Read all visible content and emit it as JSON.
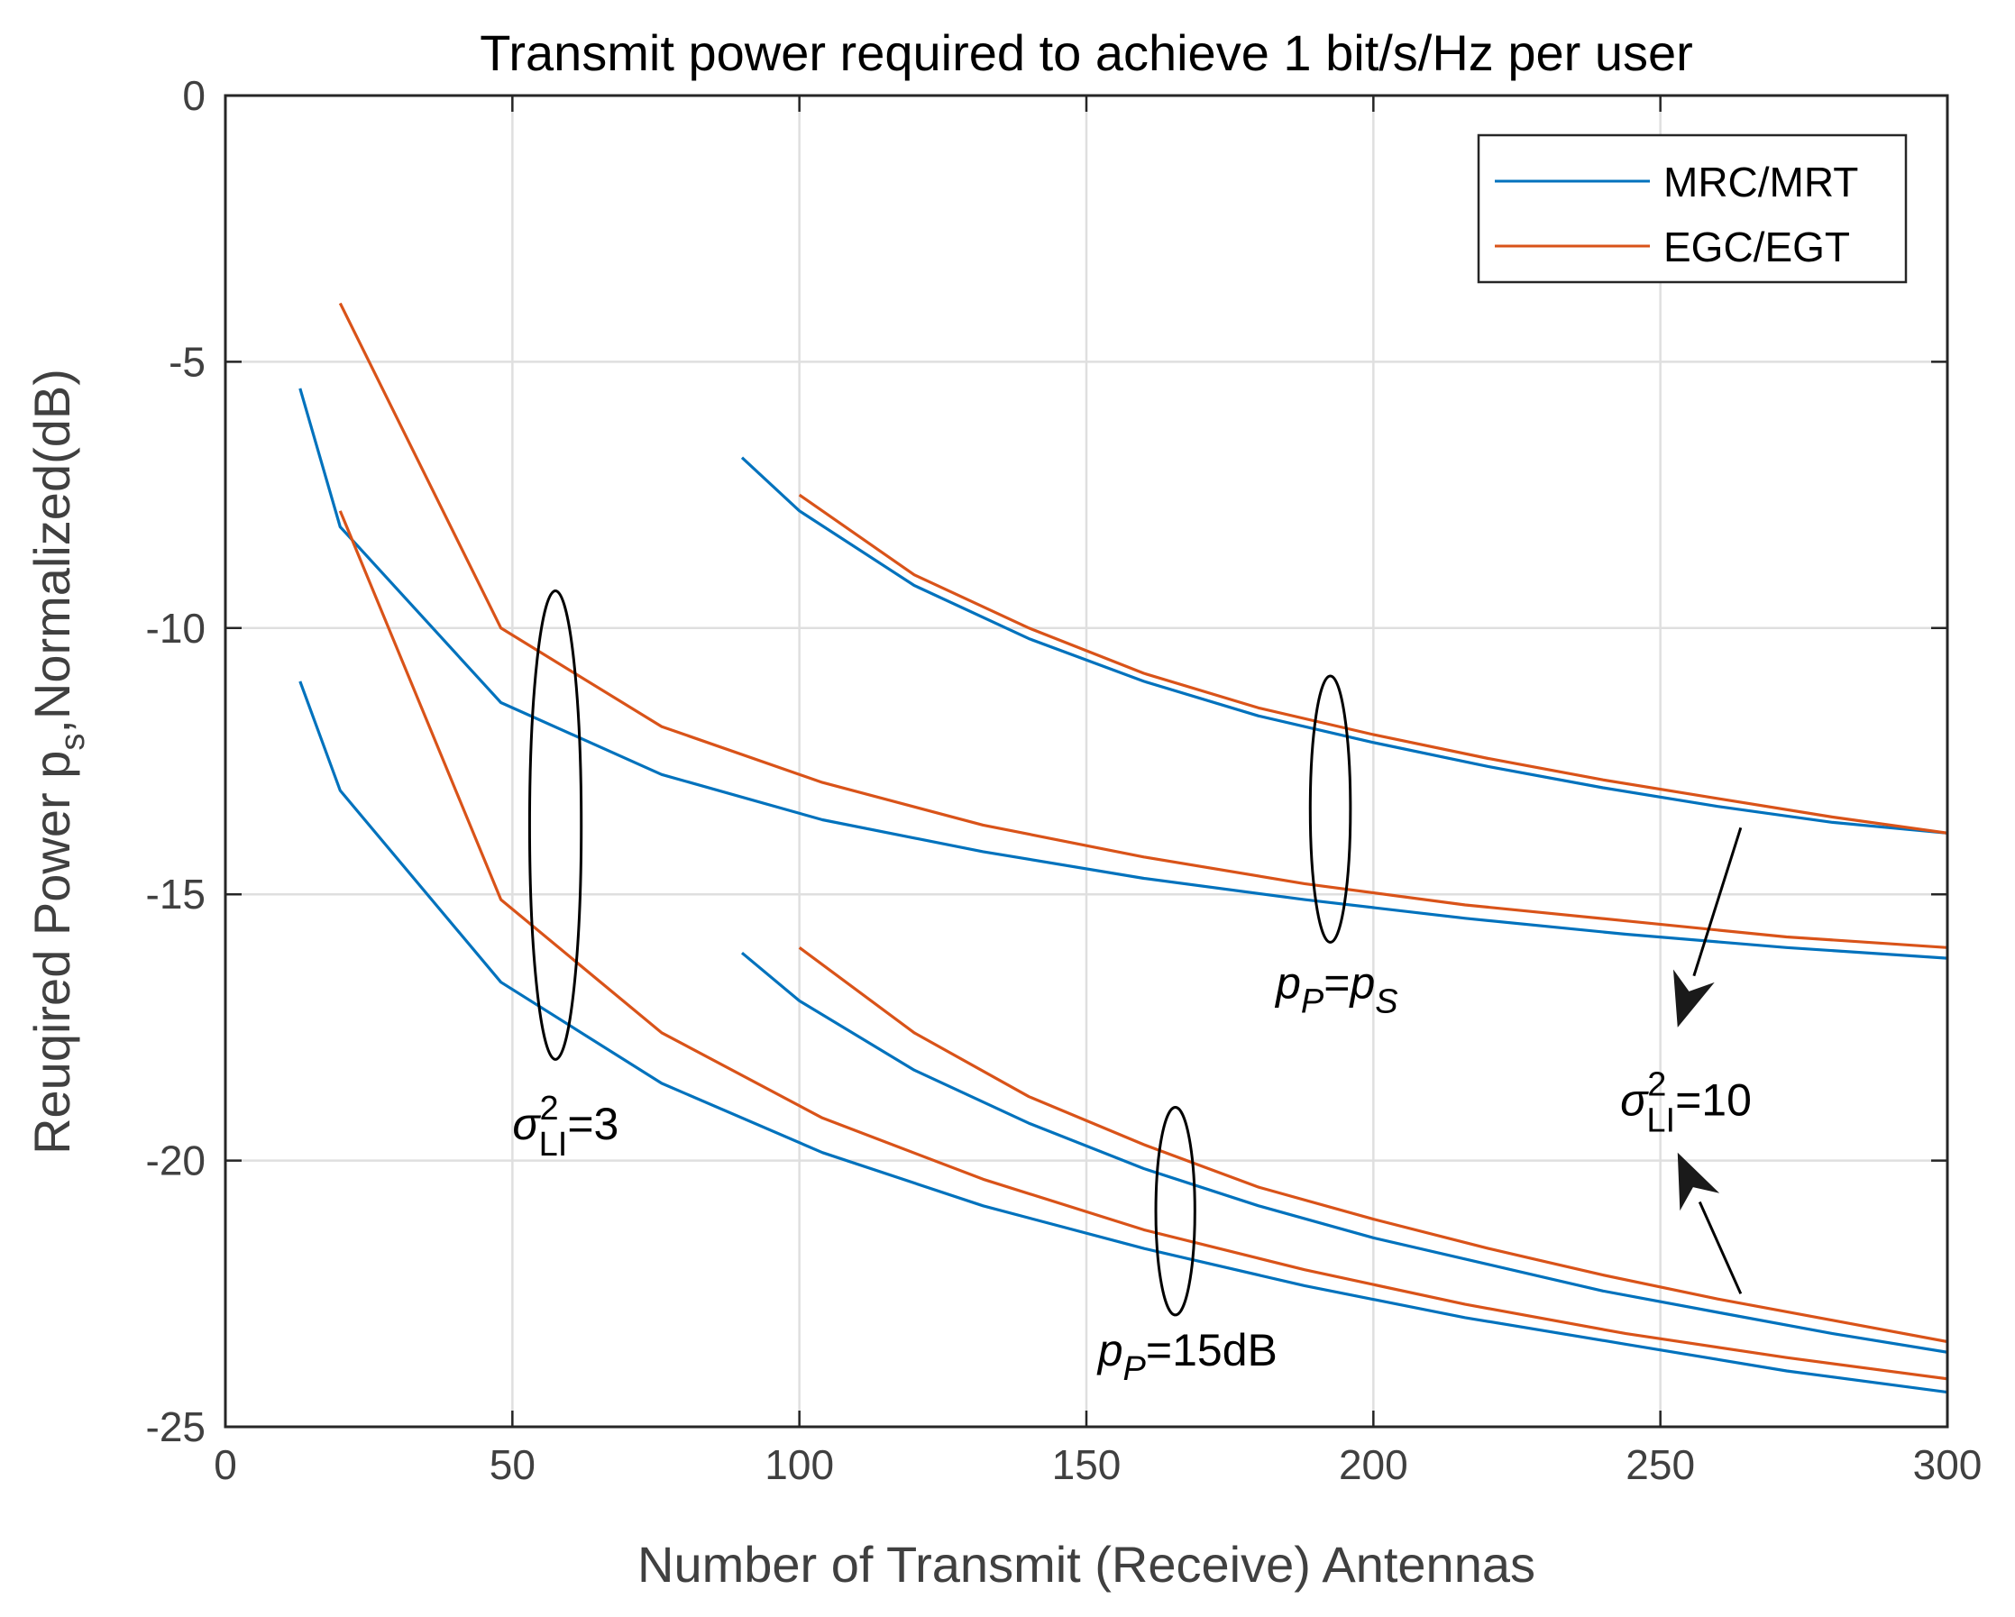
{
  "chart_data": {
    "type": "line",
    "title": "Transmit power required to achieve 1 bit/s/Hz per user",
    "xlabel": "Number of Transmit (Receive) Antennas",
    "ylabel": {
      "main": "Reuqired Power p",
      "sub": "s",
      "rest": ",Normalized(dB)"
    },
    "xlim": [
      0,
      300
    ],
    "ylim": [
      -25,
      0
    ],
    "xticks": [
      0,
      50,
      100,
      150,
      200,
      250,
      300
    ],
    "yticks": [
      0,
      -5,
      -10,
      -15,
      -20,
      -25
    ],
    "xtick_labels": [
      "0",
      "50",
      "100",
      "150",
      "200",
      "250",
      "300"
    ],
    "ytick_labels": [
      "0",
      "-5",
      "-10",
      "-15",
      "-20",
      "-25"
    ],
    "grid": true,
    "legend": {
      "placement": "top-right",
      "entries": [
        {
          "label": "MRC/MRT",
          "color": "#0072BD"
        },
        {
          "label": "EGC/EGT",
          "color": "#D95319"
        }
      ]
    },
    "series": [
      {
        "legend": "MRC/MRT",
        "color": "#0072BD",
        "x": [
          13,
          20,
          48,
          76,
          104,
          132,
          160,
          188,
          216,
          244,
          272,
          300
        ],
        "y": [
          -5.5,
          -8.1,
          -11.4,
          -12.75,
          -13.6,
          -14.2,
          -14.7,
          -15.1,
          -15.45,
          -15.75,
          -16.0,
          -16.2
        ]
      },
      {
        "legend": "EGC/EGT",
        "color": "#D95319",
        "x": [
          20,
          48,
          76,
          104,
          132,
          160,
          188,
          216,
          244,
          272,
          300
        ],
        "y": [
          -3.9,
          -10.0,
          -11.85,
          -12.9,
          -13.7,
          -14.3,
          -14.8,
          -15.2,
          -15.5,
          -15.8,
          -16.0
        ]
      },
      {
        "legend": "MRC/MRT",
        "color": "#0072BD",
        "x": [
          13,
          20,
          48,
          76,
          104,
          132,
          160,
          188,
          216,
          244,
          272,
          300
        ],
        "y": [
          -11.0,
          -13.05,
          -16.65,
          -18.55,
          -19.85,
          -20.85,
          -21.65,
          -22.35,
          -22.95,
          -23.45,
          -23.95,
          -24.35
        ]
      },
      {
        "legend": "EGC/EGT",
        "color": "#D95319",
        "x": [
          20,
          48,
          76,
          104,
          132,
          160,
          188,
          216,
          244,
          272,
          300
        ],
        "y": [
          -7.8,
          -15.1,
          -17.6,
          -19.2,
          -20.35,
          -21.3,
          -22.05,
          -22.7,
          -23.25,
          -23.7,
          -24.1
        ]
      },
      {
        "legend": "MRC/MRT",
        "color": "#0072BD",
        "x": [
          90,
          100,
          120,
          140,
          160,
          180,
          200,
          220,
          240,
          260,
          280,
          300
        ],
        "y": [
          -6.8,
          -7.8,
          -9.2,
          -10.2,
          -11.0,
          -11.65,
          -12.15,
          -12.6,
          -13.0,
          -13.35,
          -13.65,
          -13.85
        ]
      },
      {
        "legend": "EGC/EGT",
        "color": "#D95319",
        "x": [
          100,
          120,
          140,
          160,
          180,
          200,
          220,
          240,
          260,
          280,
          300
        ],
        "y": [
          -7.5,
          -9.0,
          -10.0,
          -10.85,
          -11.5,
          -12.0,
          -12.45,
          -12.85,
          -13.2,
          -13.55,
          -13.85
        ]
      },
      {
        "legend": "MRC/MRT",
        "color": "#0072BD",
        "x": [
          90,
          100,
          120,
          140,
          160,
          180,
          200,
          220,
          240,
          260,
          280,
          300
        ],
        "y": [
          -16.1,
          -17.0,
          -18.3,
          -19.3,
          -20.15,
          -20.85,
          -21.45,
          -21.95,
          -22.45,
          -22.85,
          -23.25,
          -23.6
        ]
      },
      {
        "legend": "EGC/EGT",
        "color": "#D95319",
        "x": [
          100,
          120,
          140,
          160,
          180,
          200,
          220,
          240,
          260,
          280,
          300
        ],
        "y": [
          -16.0,
          -17.6,
          -18.8,
          -19.7,
          -20.5,
          -21.1,
          -21.65,
          -22.15,
          -22.6,
          -23.0,
          -23.4
        ]
      }
    ],
    "annotations": [
      {
        "kind": "ellipse",
        "cx": 57.5,
        "cy": -13.7,
        "rx": 4.5,
        "ry": 4.4
      },
      {
        "kind": "ellipse",
        "cx": 192.5,
        "cy": -13.4,
        "rx": 3.5,
        "ry": 2.5
      },
      {
        "kind": "ellipse",
        "cx": 165.5,
        "cy": -20.95,
        "rx": 3.4,
        "ry": 1.95
      },
      {
        "kind": "arrow",
        "from": [
          264,
          -13.75
        ],
        "to": [
          253,
          -17.5
        ]
      },
      {
        "kind": "arrow",
        "from": [
          264,
          -22.5
        ],
        "to": [
          253,
          -19.85
        ]
      },
      {
        "kind": "text",
        "parts": [
          "σ",
          "2",
          "LI",
          "=3"
        ],
        "x": 50,
        "y": -19.6
      },
      {
        "kind": "text",
        "parts": [
          "p",
          "P",
          "=",
          "p",
          "S"
        ],
        "x": 183,
        "y": -16.95
      },
      {
        "kind": "text",
        "parts": [
          "p",
          "P",
          "=15dB"
        ],
        "x": 152,
        "y": -23.85
      },
      {
        "kind": "text",
        "parts": [
          "σ",
          "2",
          "LI",
          "=10"
        ],
        "x": 243,
        "y": -19.15
      }
    ]
  }
}
